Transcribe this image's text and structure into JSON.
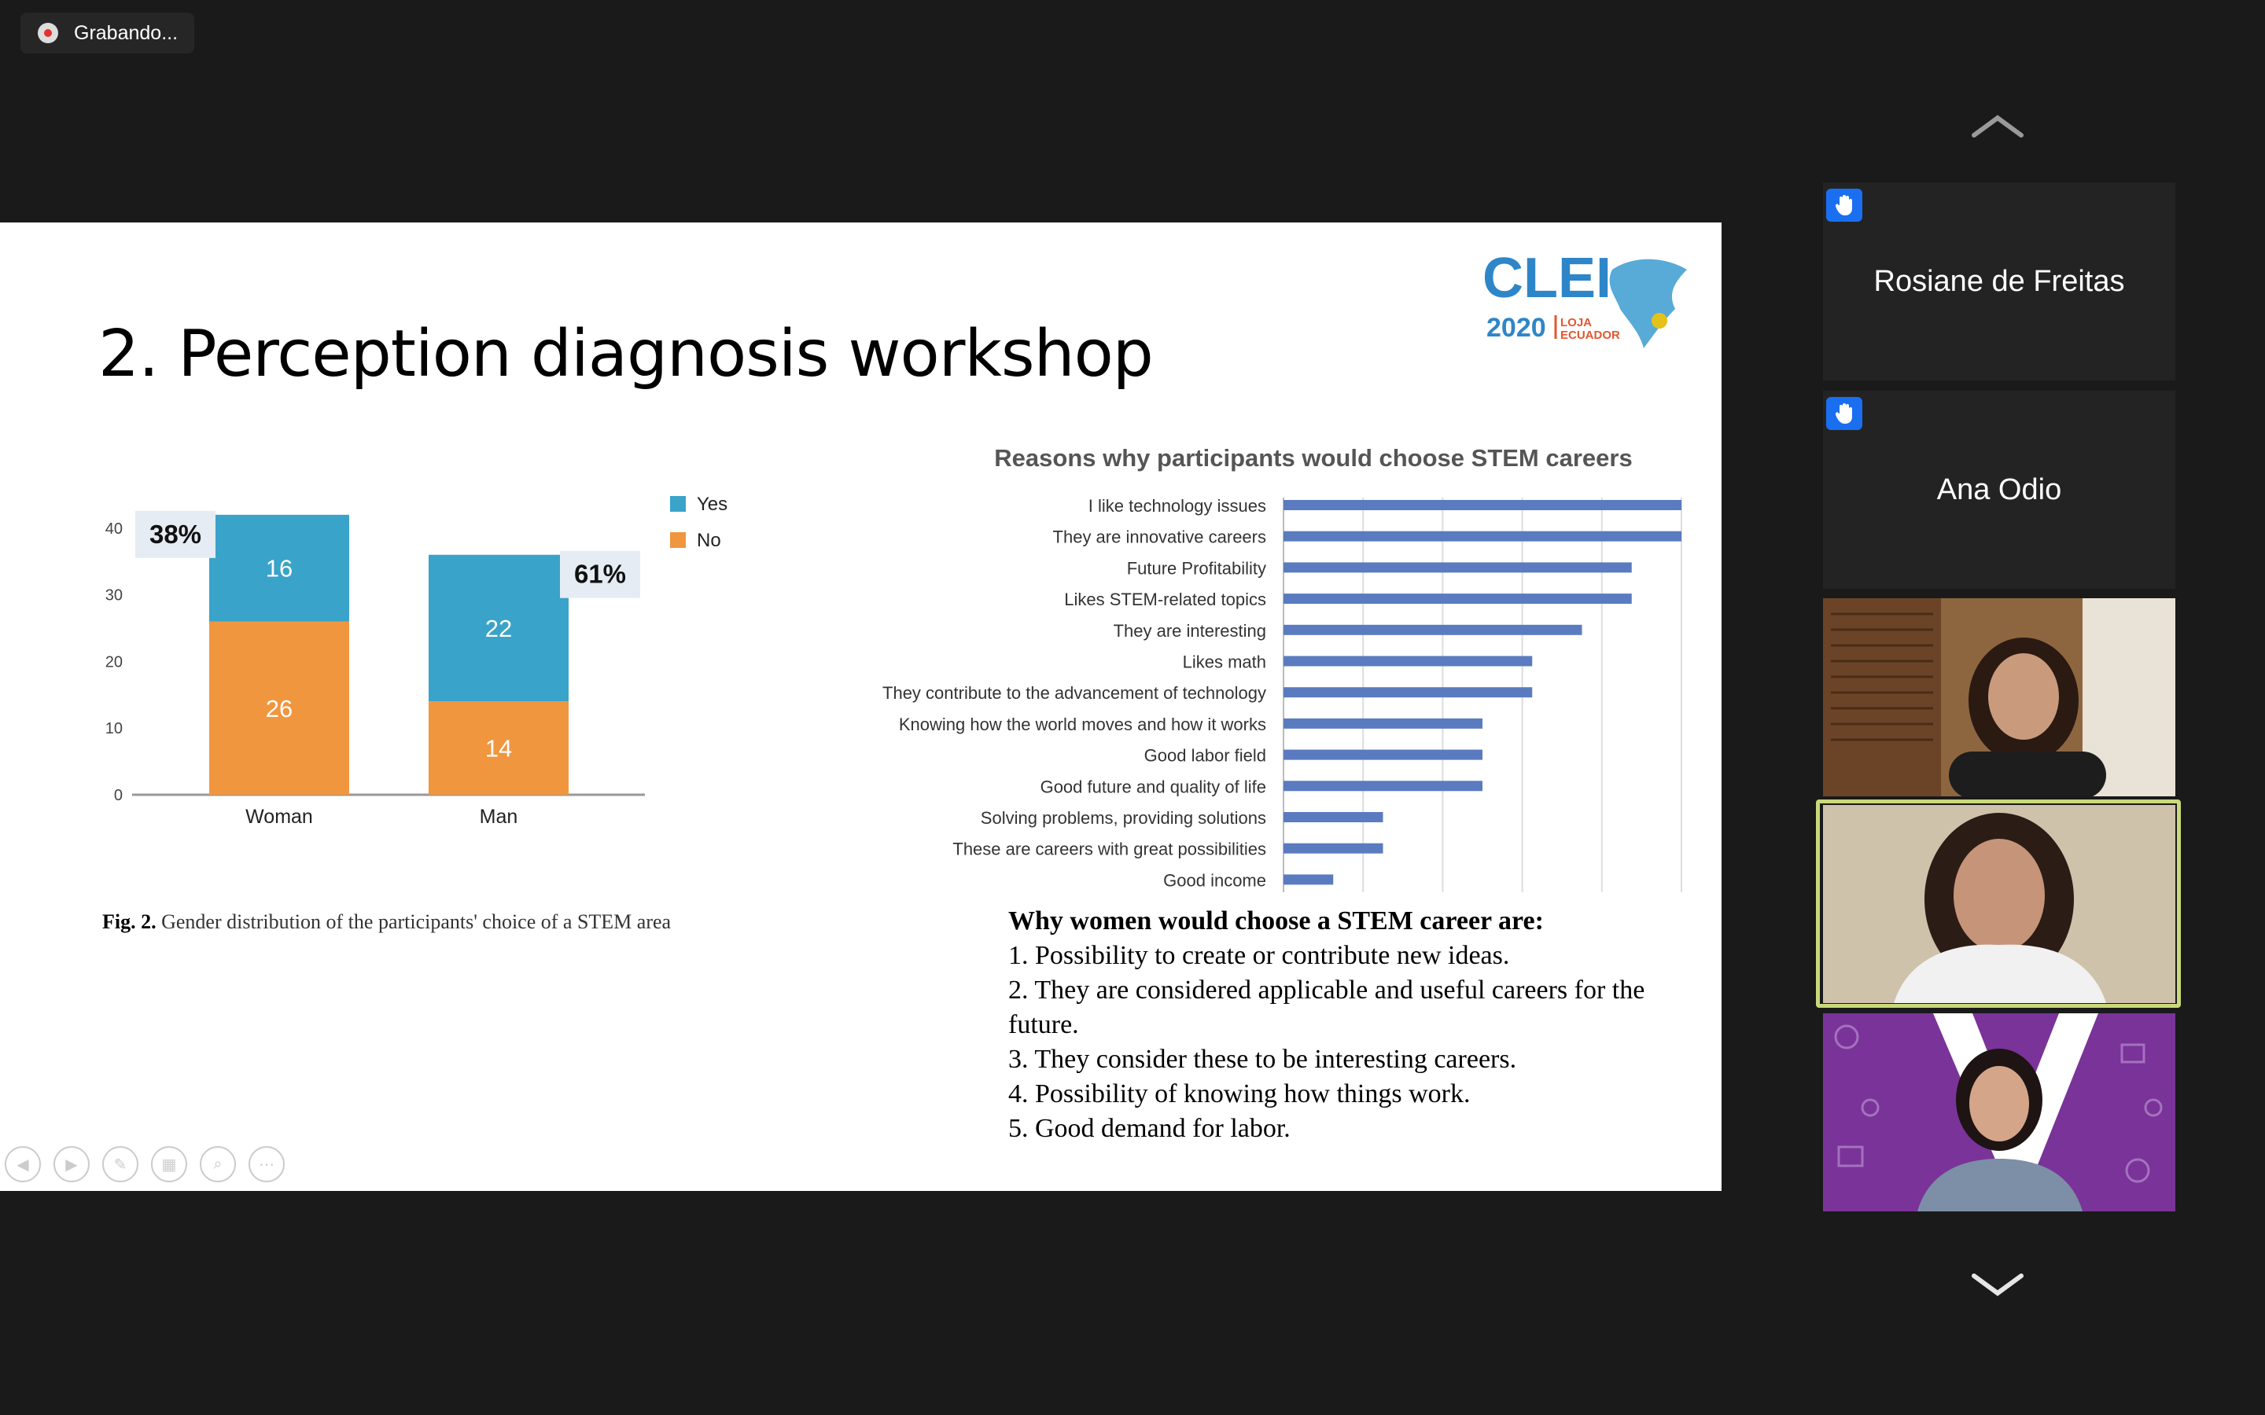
{
  "recording": {
    "label": "Grabando..."
  },
  "slide": {
    "title": "2. Perception diagnosis workshop",
    "logo": {
      "text": "CLEI",
      "year": "2020",
      "place_line1": "LOJA",
      "place_line2": "ECUADOR"
    },
    "fig_caption_bold": "Fig. 2.",
    "fig_caption_text": " Gender distribution of the participants' choice of a STEM area",
    "bar_title": "Reasons why participants would choose STEM careers",
    "reasons_heading": "Why women would choose a STEM career are:",
    "reasons": [
      "1. Possibility to create or contribute new ideas.",
      "2. They are considered applicable and useful careers for the future.",
      "3. They consider these to be interesting careers.",
      "4. Possibility of knowing how things work.",
      "5. Good demand for labor."
    ]
  },
  "chart_data": [
    {
      "type": "bar",
      "stacked": true,
      "categories": [
        "Woman",
        "Man"
      ],
      "series": [
        {
          "name": "Yes",
          "values": [
            16,
            22
          ],
          "color": "#3aa3c9"
        },
        {
          "name": "No",
          "values": [
            26,
            14
          ],
          "color": "#f0963f"
        }
      ],
      "ylim": [
        0,
        50
      ],
      "yticks": [
        0,
        10,
        20,
        30,
        40,
        50
      ],
      "annotations": [
        "38%",
        "61%"
      ],
      "legend": "top-right",
      "grid": false
    },
    {
      "type": "bar",
      "orientation": "horizontal",
      "title": "Reasons why participants would choose STEM careers",
      "categories": [
        "I like technology issues",
        "They are innovative careers",
        "Future Profitability",
        "Likes STEM-related topics",
        "They are interesting",
        "Likes math",
        "They contribute to the advancement of technology",
        "Knowing how the world moves and how it works",
        "Good labor field",
        "Good future and quality of life",
        "Solving problems, providing solutions",
        "These are careers with great possibilities",
        "Good income"
      ],
      "values": [
        16,
        16,
        14,
        14,
        12,
        10,
        10,
        8,
        8,
        8,
        4,
        4,
        2
      ],
      "xlim": [
        0,
        16
      ],
      "color": "#5a7bbf",
      "grid": true
    }
  ],
  "participants": [
    {
      "name": "Rosiane de Freitas",
      "hand_raised": true
    },
    {
      "name": "Ana Odio",
      "hand_raised": true
    }
  ],
  "colors": {
    "hand": "#1a6ff0",
    "active_speaker": "#c9d97a"
  }
}
